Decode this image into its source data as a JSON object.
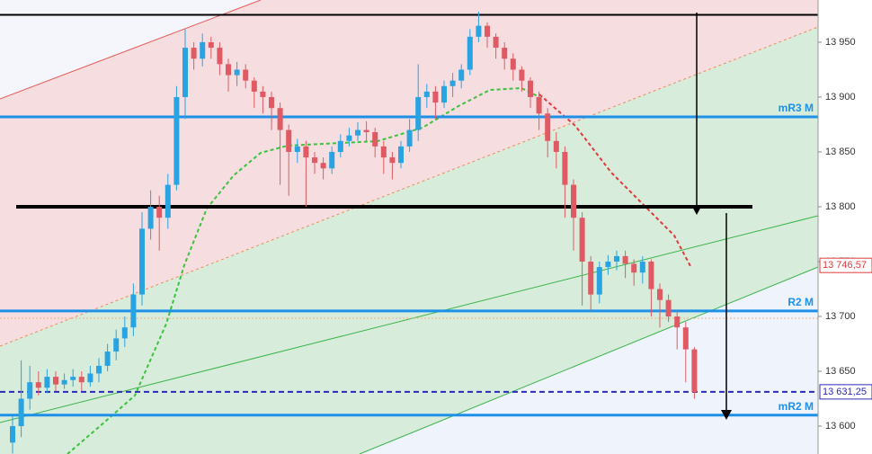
{
  "chart_data": {
    "type": "candlestick",
    "up_color": "#2aa3e2",
    "down_color": "#e05a63",
    "ylim": [
      13574.6,
      13988.5
    ],
    "yticks": [
      {
        "value": 13600,
        "label": "13 600"
      },
      {
        "value": 13650,
        "label": "13 650"
      },
      {
        "value": 13700,
        "label": "13 700"
      },
      {
        "value": 13750,
        "label": "13 750"
      },
      {
        "value": 13800,
        "label": "13 800"
      },
      {
        "value": 13850,
        "label": "13 850"
      },
      {
        "value": 13900,
        "label": "13 900"
      },
      {
        "value": 13950,
        "label": "13 950"
      }
    ],
    "open": [
      13585,
      13600,
      13625,
      13640,
      13635,
      13645,
      13638,
      13642,
      13645,
      13640,
      13648,
      13655,
      13668,
      13680,
      13690,
      13720,
      13780,
      13800,
      13790,
      13820,
      13900,
      13945,
      13935,
      13950,
      13945,
      13930,
      13920,
      13925,
      13915,
      13905,
      13900,
      13890,
      13870,
      13850,
      13855,
      13845,
      13840,
      13835,
      13850,
      13860,
      13865,
      13870,
      13868,
      13855,
      13845,
      13840,
      13855,
      13870,
      13900,
      13905,
      13895,
      13910,
      13915,
      13925,
      13955,
      13965,
      13955,
      13945,
      13935,
      13925,
      13915,
      13900,
      13885,
      13860,
      13850,
      13820,
      13790,
      13750,
      13720,
      13745,
      13750,
      13755,
      13748,
      13740,
      13750,
      13725,
      13715,
      13700,
      13690,
      13670
    ],
    "high": [
      13610,
      13660,
      13655,
      13650,
      13652,
      13650,
      13648,
      13652,
      13650,
      13655,
      13662,
      13675,
      13688,
      13700,
      13730,
      13795,
      13815,
      13810,
      13830,
      13910,
      13962,
      13950,
      13958,
      13955,
      13950,
      13935,
      13932,
      13930,
      13918,
      13910,
      13905,
      13895,
      13875,
      13862,
      13860,
      13850,
      13845,
      13855,
      13866,
      13872,
      13877,
      13878,
      13872,
      13860,
      13850,
      13860,
      13880,
      13930,
      13912,
      13910,
      13915,
      13922,
      13930,
      13962,
      13978,
      13968,
      13958,
      13950,
      13940,
      13928,
      13918,
      13905,
      13890,
      13868,
      13855,
      13825,
      13795,
      13755,
      13750,
      13756,
      13760,
      13760,
      13752,
      13755,
      13752,
      13730,
      13720,
      13705,
      13695,
      13672
    ],
    "low": [
      13575,
      13590,
      13615,
      13628,
      13630,
      13632,
      13634,
      13636,
      13632,
      13636,
      13640,
      13650,
      13660,
      13672,
      13682,
      13710,
      13770,
      13760,
      13780,
      13815,
      13880,
      13925,
      13928,
      13935,
      13920,
      13905,
      13910,
      13908,
      13890,
      13885,
      13870,
      13820,
      13810,
      13840,
      13800,
      13830,
      13825,
      13830,
      13845,
      13855,
      13860,
      13860,
      13845,
      13830,
      13825,
      13835,
      13850,
      13860,
      13890,
      13880,
      13890,
      13900,
      13908,
      13920,
      13950,
      13945,
      13935,
      13925,
      13915,
      13905,
      13890,
      13870,
      13845,
      13835,
      13790,
      13760,
      13710,
      13705,
      13712,
      13738,
      13742,
      13735,
      13728,
      13730,
      13700,
      13690,
      13695,
      13670,
      13640,
      13625
    ],
    "close": [
      13600,
      13625,
      13640,
      13635,
      13645,
      13638,
      13642,
      13645,
      13640,
      13648,
      13655,
      13668,
      13680,
      13690,
      13720,
      13780,
      13800,
      13790,
      13820,
      13900,
      13945,
      13935,
      13950,
      13945,
      13930,
      13920,
      13925,
      13915,
      13905,
      13900,
      13890,
      13870,
      13850,
      13855,
      13845,
      13840,
      13835,
      13850,
      13860,
      13865,
      13870,
      13868,
      13855,
      13845,
      13840,
      13855,
      13870,
      13900,
      13905,
      13895,
      13910,
      13915,
      13925,
      13955,
      13965,
      13955,
      13945,
      13935,
      13925,
      13915,
      13900,
      13885,
      13860,
      13850,
      13820,
      13790,
      13750,
      13720,
      13745,
      13750,
      13755,
      13748,
      13740,
      13750,
      13725,
      13715,
      13700,
      13690,
      13670,
      13631
    ],
    "levels": [
      {
        "value": 13975,
        "color": "#000000"
      },
      {
        "value": 13800,
        "color": "#000000"
      },
      {
        "value": 13882,
        "label": "mR3 M",
        "color": "#1e90e8"
      },
      {
        "value": 13705,
        "label": "R2 M",
        "color": "#1e90e8"
      },
      {
        "value": 13610,
        "label": "mR2 M",
        "color": "#1e90e8"
      }
    ],
    "price_tags": [
      {
        "value": 13746.57,
        "label": "13 746,57",
        "color": "#e03a3a"
      },
      {
        "value": 13631.25,
        "label": "13 631,25",
        "color": "#2a2ab8"
      }
    ]
  }
}
